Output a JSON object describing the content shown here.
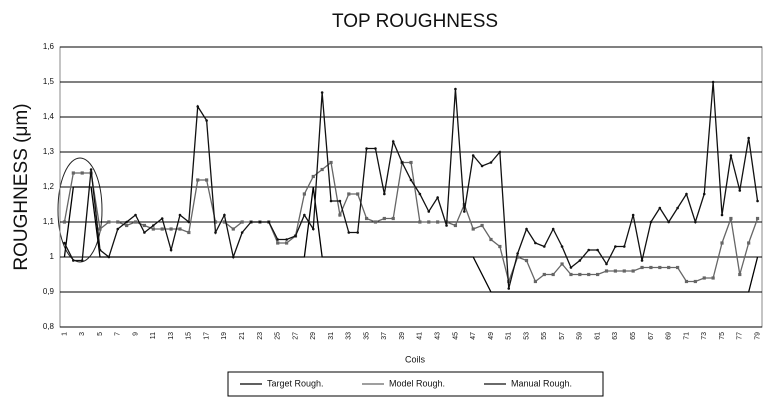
{
  "chart_data": {
    "type": "line",
    "title": "TOP ROUGHNESS",
    "y_label": "ROUGHNESS (μm)",
    "x_label": "Coils",
    "categories": [
      "1",
      null,
      "3",
      null,
      "5",
      null,
      "7",
      null,
      "9",
      null,
      "11",
      null,
      "13",
      null,
      "15",
      null,
      "17",
      null,
      "19",
      null,
      "21",
      null,
      "23",
      null,
      "25",
      null,
      "27",
      null,
      "29",
      null,
      "31",
      null,
      "33",
      null,
      "35",
      null,
      "37",
      null,
      "39",
      null,
      "41",
      null,
      "43",
      null,
      "45",
      null,
      "47",
      null,
      "49",
      null,
      "51",
      null,
      "53",
      null,
      "55",
      null,
      "57",
      null,
      "59",
      null,
      "61",
      null,
      "63",
      null,
      "65",
      null,
      "67",
      null,
      "69",
      null,
      "71",
      null,
      "73",
      null,
      "75",
      null,
      "77",
      null,
      "79"
    ],
    "series": [
      {
        "name": "Target Rough.",
        "color": "#000000",
        "marker": "none",
        "values": [
          1.0,
          1.2,
          1.2,
          1.2,
          1.0,
          1.0,
          1.0,
          1.0,
          1.0,
          1.0,
          1.0,
          1.0,
          1.0,
          1.0,
          1.0,
          1.0,
          1.0,
          1.0,
          1.0,
          1.0,
          1.0,
          1.0,
          1.0,
          1.0,
          1.0,
          1.0,
          1.0,
          1.0,
          1.2,
          1.0,
          1.0,
          1.0,
          1.0,
          1.0,
          1.0,
          1.0,
          1.0,
          1.0,
          1.0,
          1.0,
          1.0,
          1.0,
          1.0,
          1.0,
          1.0,
          1.0,
          1.0,
          0.95,
          0.9,
          0.9,
          0.9,
          0.9,
          0.9,
          0.9,
          0.9,
          0.9,
          0.9,
          0.9,
          0.9,
          0.9,
          0.9,
          0.9,
          0.9,
          0.9,
          0.9,
          0.9,
          0.9,
          0.9,
          0.9,
          0.9,
          0.9,
          0.9,
          0.9,
          0.9,
          0.9,
          0.9,
          0.9,
          0.9,
          1.0
        ]
      },
      {
        "name": "Model Rough.",
        "color": "#666666",
        "marker": "square",
        "values": [
          1.1,
          1.24,
          1.24,
          1.24,
          1.08,
          1.1,
          1.1,
          1.09,
          1.1,
          1.09,
          1.08,
          1.08,
          1.08,
          1.08,
          1.07,
          1.22,
          1.22,
          1.1,
          1.1,
          1.08,
          1.1,
          1.1,
          1.1,
          1.1,
          1.04,
          1.04,
          1.06,
          1.18,
          1.23,
          1.25,
          1.27,
          1.12,
          1.18,
          1.18,
          1.11,
          1.1,
          1.11,
          1.11,
          1.27,
          1.27,
          1.1,
          1.1,
          1.1,
          1.1,
          1.09,
          1.15,
          1.08,
          1.09,
          1.05,
          1.03,
          0.93,
          1.0,
          0.99,
          0.93,
          0.95,
          0.95,
          0.98,
          0.95,
          0.95,
          0.95,
          0.95,
          0.96,
          0.96,
          0.96,
          0.96,
          0.97,
          0.97,
          0.97,
          0.97,
          0.97,
          0.93,
          0.93,
          0.94,
          0.94,
          1.04,
          1.11,
          0.95,
          1.04,
          1.11
        ]
      },
      {
        "name": "Manual Rough.",
        "color": "#111111",
        "marker": "dot",
        "values": [
          1.04,
          0.99,
          0.99,
          1.25,
          1.02,
          1.0,
          1.08,
          1.1,
          1.12,
          1.07,
          1.09,
          1.11,
          1.02,
          1.12,
          1.1,
          1.43,
          1.39,
          1.07,
          1.12,
          1.0,
          1.07,
          1.1,
          1.1,
          1.1,
          1.05,
          1.05,
          1.06,
          1.12,
          1.08,
          1.47,
          1.16,
          1.16,
          1.07,
          1.07,
          1.31,
          1.31,
          1.18,
          1.33,
          1.27,
          1.22,
          1.18,
          1.13,
          1.17,
          1.09,
          1.48,
          1.13,
          1.29,
          1.26,
          1.27,
          1.3,
          0.91,
          1.01,
          1.08,
          1.04,
          1.03,
          1.08,
          1.03,
          0.97,
          0.99,
          1.02,
          1.02,
          0.98,
          1.03,
          1.03,
          1.12,
          0.99,
          1.1,
          1.14,
          1.1,
          1.14,
          1.18,
          1.1,
          1.18,
          1.5,
          1.12,
          1.29,
          1.19,
          1.34,
          1.16
        ]
      }
    ],
    "ylim": [
      0.8,
      1.6
    ],
    "yticks": [
      {
        "value": 0.8,
        "label": "0,8"
      },
      {
        "value": 0.9,
        "label": "0,9"
      },
      1,
      {
        "value": 1.1,
        "label": "1,1"
      },
      {
        "value": 1.2,
        "label": "1,2"
      },
      {
        "value": 1.3,
        "label": "1,3"
      },
      {
        "value": 1.4,
        "label": "1,4"
      },
      {
        "value": 1.5,
        "label": "1,5"
      },
      {
        "value": 1.6,
        "label": "1,6"
      }
    ],
    "grid": true,
    "legend": "bottom"
  }
}
